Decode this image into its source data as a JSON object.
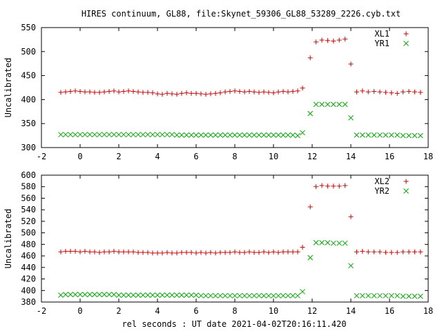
{
  "chart_data": [
    {
      "type": "scatter",
      "title": "HIRES continuum, GL88, file:Skynet_59306_GL88_53289_2226.cyb.txt",
      "xlabel": "",
      "ylabel": "Uncalibrated",
      "xlim": [
        -2,
        18
      ],
      "ylim": [
        300,
        550
      ],
      "xticks": [
        -2,
        0,
        2,
        4,
        6,
        8,
        10,
        12,
        14,
        16,
        18
      ],
      "yticks": [
        300,
        350,
        400,
        450,
        500,
        550
      ],
      "grid": false,
      "legend_position": "top-right",
      "series": [
        {
          "name": "XL1",
          "marker": "plus",
          "color": "#cc0000",
          "x": [
            -1.0,
            -0.75,
            -0.5,
            -0.25,
            0.0,
            0.25,
            0.5,
            0.75,
            1.0,
            1.25,
            1.5,
            1.75,
            2.0,
            2.25,
            2.5,
            2.75,
            3.0,
            3.25,
            3.5,
            3.75,
            4.0,
            4.25,
            4.5,
            4.75,
            5.0,
            5.25,
            5.5,
            5.75,
            6.0,
            6.25,
            6.5,
            6.75,
            7.0,
            7.25,
            7.5,
            7.75,
            8.0,
            8.25,
            8.5,
            8.75,
            9.0,
            9.25,
            9.5,
            9.75,
            10.0,
            10.25,
            10.5,
            10.75,
            11.0,
            11.25,
            11.5,
            11.9,
            12.2,
            12.5,
            12.8,
            13.1,
            13.4,
            13.7,
            14.0,
            14.3,
            14.6,
            14.9,
            15.2,
            15.5,
            15.8,
            16.1,
            16.4,
            16.7,
            17.0,
            17.3,
            17.6
          ],
          "y": [
            415,
            416,
            417,
            418,
            417,
            416,
            416,
            415,
            415,
            416,
            417,
            418,
            416,
            417,
            418,
            417,
            416,
            415,
            415,
            414,
            412,
            411,
            413,
            412,
            411,
            413,
            414,
            413,
            413,
            412,
            411,
            412,
            413,
            414,
            416,
            417,
            418,
            417,
            416,
            417,
            416,
            415,
            416,
            415,
            414,
            416,
            417,
            416,
            417,
            418,
            424,
            487,
            520,
            524,
            523,
            522,
            524,
            526,
            474,
            416,
            418,
            416,
            417,
            416,
            415,
            414,
            413,
            416,
            417,
            416,
            415
          ]
        },
        {
          "name": "YR1",
          "marker": "cross",
          "color": "#00aa00",
          "x": [
            -1.0,
            -0.75,
            -0.5,
            -0.25,
            0.0,
            0.25,
            0.5,
            0.75,
            1.0,
            1.25,
            1.5,
            1.75,
            2.0,
            2.25,
            2.5,
            2.75,
            3.0,
            3.25,
            3.5,
            3.75,
            4.0,
            4.25,
            4.5,
            4.75,
            5.0,
            5.25,
            5.5,
            5.75,
            6.0,
            6.25,
            6.5,
            6.75,
            7.0,
            7.25,
            7.5,
            7.75,
            8.0,
            8.25,
            8.5,
            8.75,
            9.0,
            9.25,
            9.5,
            9.75,
            10.0,
            10.25,
            10.5,
            10.75,
            11.0,
            11.25,
            11.5,
            11.9,
            12.2,
            12.5,
            12.8,
            13.1,
            13.4,
            13.7,
            14.0,
            14.3,
            14.6,
            14.9,
            15.2,
            15.5,
            15.8,
            16.1,
            16.4,
            16.7,
            17.0,
            17.3,
            17.6
          ],
          "y": [
            327,
            327,
            327,
            327,
            327,
            327,
            327,
            327,
            327,
            327,
            327,
            327,
            327,
            327,
            327,
            327,
            327,
            327,
            327,
            327,
            327,
            327,
            327,
            327,
            326,
            326,
            326,
            326,
            326,
            326,
            326,
            326,
            326,
            326,
            326,
            326,
            326,
            326,
            326,
            326,
            326,
            326,
            326,
            326,
            326,
            326,
            326,
            326,
            326,
            325,
            331,
            371,
            390,
            390,
            390,
            390,
            390,
            390,
            362,
            326,
            326,
            326,
            326,
            326,
            326,
            326,
            326,
            325,
            325,
            325,
            325
          ]
        }
      ]
    },
    {
      "type": "scatter",
      "title": "",
      "xlabel": "rel seconds : UT date 2021-04-02T20:16:11.420",
      "ylabel": "Uncalibrated",
      "xlim": [
        -2,
        18
      ],
      "ylim": [
        380,
        600
      ],
      "xticks": [
        -2,
        0,
        2,
        4,
        6,
        8,
        10,
        12,
        14,
        16,
        18
      ],
      "yticks": [
        380,
        400,
        420,
        440,
        460,
        480,
        500,
        520,
        540,
        560,
        580,
        600
      ],
      "grid": false,
      "legend_position": "top-right",
      "series": [
        {
          "name": "XL2",
          "marker": "plus",
          "color": "#cc0000",
          "x": [
            -1.0,
            -0.75,
            -0.5,
            -0.25,
            0.0,
            0.25,
            0.5,
            0.75,
            1.0,
            1.25,
            1.5,
            1.75,
            2.0,
            2.25,
            2.5,
            2.75,
            3.0,
            3.25,
            3.5,
            3.75,
            4.0,
            4.25,
            4.5,
            4.75,
            5.0,
            5.25,
            5.5,
            5.75,
            6.0,
            6.25,
            6.5,
            6.75,
            7.0,
            7.25,
            7.5,
            7.75,
            8.0,
            8.25,
            8.5,
            8.75,
            9.0,
            9.25,
            9.5,
            9.75,
            10.0,
            10.25,
            10.5,
            10.75,
            11.0,
            11.25,
            11.5,
            11.9,
            12.2,
            12.5,
            12.8,
            13.1,
            13.4,
            13.7,
            14.0,
            14.3,
            14.6,
            14.9,
            15.2,
            15.5,
            15.8,
            16.1,
            16.4,
            16.7,
            17.0,
            17.3,
            17.6
          ],
          "y": [
            467,
            468,
            468,
            468,
            467,
            468,
            467,
            467,
            466,
            467,
            467,
            468,
            467,
            467,
            467,
            467,
            466,
            466,
            466,
            465,
            465,
            465,
            466,
            465,
            465,
            466,
            466,
            466,
            465,
            466,
            465,
            466,
            465,
            466,
            466,
            466,
            467,
            466,
            466,
            467,
            466,
            466,
            467,
            466,
            467,
            466,
            467,
            467,
            467,
            467,
            475,
            545,
            580,
            582,
            581,
            581,
            581,
            582,
            528,
            467,
            468,
            467,
            467,
            467,
            466,
            466,
            466,
            467,
            467,
            467,
            467
          ]
        },
        {
          "name": "YR2",
          "marker": "cross",
          "color": "#00aa00",
          "x": [
            -1.0,
            -0.75,
            -0.5,
            -0.25,
            0.0,
            0.25,
            0.5,
            0.75,
            1.0,
            1.25,
            1.5,
            1.75,
            2.0,
            2.25,
            2.5,
            2.75,
            3.0,
            3.25,
            3.5,
            3.75,
            4.0,
            4.25,
            4.5,
            4.75,
            5.0,
            5.25,
            5.5,
            5.75,
            6.0,
            6.25,
            6.5,
            6.75,
            7.0,
            7.25,
            7.5,
            7.75,
            8.0,
            8.25,
            8.5,
            8.75,
            9.0,
            9.25,
            9.5,
            9.75,
            10.0,
            10.25,
            10.5,
            10.75,
            11.0,
            11.25,
            11.5,
            11.9,
            12.2,
            12.5,
            12.8,
            13.1,
            13.4,
            13.7,
            14.0,
            14.3,
            14.6,
            14.9,
            15.2,
            15.5,
            15.8,
            16.1,
            16.4,
            16.7,
            17.0,
            17.3,
            17.6
          ],
          "y": [
            392,
            393,
            393,
            393,
            393,
            393,
            393,
            393,
            393,
            393,
            393,
            393,
            392,
            392,
            392,
            392,
            392,
            392,
            392,
            392,
            392,
            392,
            392,
            392,
            392,
            392,
            392,
            392,
            392,
            391,
            391,
            391,
            391,
            391,
            391,
            391,
            391,
            391,
            391,
            391,
            391,
            391,
            391,
            391,
            391,
            391,
            391,
            391,
            391,
            391,
            398,
            457,
            483,
            483,
            483,
            482,
            482,
            482,
            443,
            391,
            391,
            391,
            391,
            391,
            391,
            391,
            391,
            390,
            390,
            390,
            390
          ]
        }
      ]
    }
  ]
}
